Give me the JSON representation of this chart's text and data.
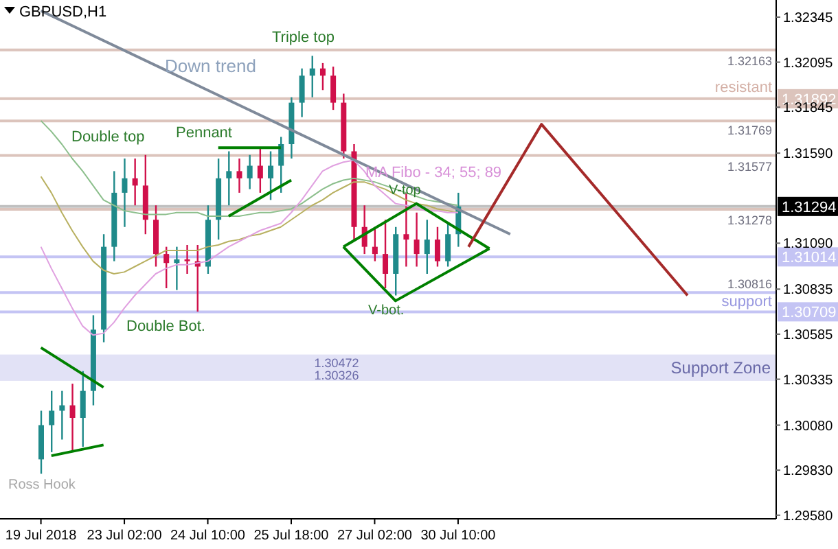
{
  "chart_data": {
    "type": "candlestick",
    "title": "GBPUSD,H1",
    "categories": [
      "19 Jul 2018",
      null,
      null,
      null,
      null,
      null,
      null,
      null,
      "23 Jul 02:00",
      null,
      null,
      null,
      null,
      null,
      null,
      null,
      "24 Jul 10:00",
      null,
      null,
      null,
      null,
      null,
      null,
      null,
      "25 Jul 18:00",
      null,
      null,
      null,
      null,
      null,
      null,
      null,
      "27 Jul 02:00",
      null,
      null,
      null,
      null,
      null,
      null,
      null,
      "30 Jul 10:00",
      null,
      null,
      null,
      null,
      null,
      null,
      null,
      null,
      null,
      null,
      null,
      null,
      null,
      null,
      null,
      null,
      null,
      null,
      null,
      null,
      null,
      null,
      null,
      null,
      null,
      null,
      null,
      null,
      null,
      null
    ],
    "ohlc": [
      [
        1.2989,
        1.3016,
        1.2981,
        1.3008
      ],
      [
        1.3008,
        1.3027,
        1.2993,
        1.3016
      ],
      [
        1.3016,
        1.3027,
        1.3,
        1.3019
      ],
      [
        1.3019,
        1.3031,
        1.2994,
        1.3012
      ],
      [
        1.3012,
        1.3038,
        1.2996,
        1.3027
      ],
      [
        1.3027,
        1.3069,
        1.3019,
        1.3061
      ],
      [
        1.3061,
        1.3114,
        1.3054,
        1.3107
      ],
      [
        1.3107,
        1.3149,
        1.3099,
        1.3137
      ],
      [
        1.3137,
        1.3156,
        1.3118,
        1.3145
      ],
      [
        1.3145,
        1.3156,
        1.313,
        1.3141
      ],
      [
        1.3141,
        1.3158,
        1.3114,
        1.3122
      ],
      [
        1.3122,
        1.313,
        1.3096,
        1.3103
      ],
      [
        1.3103,
        1.3107,
        1.3084,
        1.3098
      ],
      [
        1.3098,
        1.3107,
        1.3083,
        1.31
      ],
      [
        1.31,
        1.3108,
        1.3092,
        1.3099
      ],
      [
        1.3099,
        1.3108,
        1.3071,
        1.3096
      ],
      [
        1.3096,
        1.313,
        1.3092,
        1.3122
      ],
      [
        1.3122,
        1.3156,
        1.3111,
        1.3145
      ],
      [
        1.3145,
        1.316,
        1.313,
        1.3149
      ],
      [
        1.3149,
        1.3156,
        1.3137,
        1.3145
      ],
      [
        1.3145,
        1.3158,
        1.3139,
        1.3152
      ],
      [
        1.3152,
        1.3162,
        1.3137,
        1.3145
      ],
      [
        1.3145,
        1.316,
        1.3133,
        1.3152
      ],
      [
        1.3152,
        1.3168,
        1.3137,
        1.3164
      ],
      [
        1.3164,
        1.319,
        1.3156,
        1.3187
      ],
      [
        1.3187,
        1.3206,
        1.3179,
        1.3202
      ],
      [
        1.3202,
        1.3213,
        1.319,
        1.3206
      ],
      [
        1.3206,
        1.3209,
        1.3194,
        1.3202
      ],
      [
        1.3202,
        1.3207,
        1.3183,
        1.3187
      ],
      [
        1.3187,
        1.3192,
        1.3156,
        1.316
      ],
      [
        1.316,
        1.3164,
        1.3111,
        1.3118
      ],
      [
        1.3118,
        1.313,
        1.3103,
        1.3107
      ],
      [
        1.3107,
        1.3118,
        1.3099,
        1.3103
      ],
      [
        1.3103,
        1.3122,
        1.3084,
        1.3092
      ],
      [
        1.3092,
        1.3118,
        1.308,
        1.3114
      ],
      [
        1.3114,
        1.3137,
        1.3096,
        1.3111
      ],
      [
        1.3111,
        1.3126,
        1.3096,
        1.3103
      ],
      [
        1.3103,
        1.3122,
        1.3092,
        1.3111
      ],
      [
        1.3111,
        1.3118,
        1.3096,
        1.3099
      ],
      [
        1.3099,
        1.312,
        1.3096,
        1.3114
      ],
      [
        1.3114,
        1.3137,
        1.3107,
        1.31294
      ],
      null,
      null,
      null,
      null,
      null,
      null,
      null,
      null,
      null,
      null,
      null,
      null,
      null,
      null,
      null,
      null,
      null,
      null,
      null,
      null,
      null,
      null,
      null,
      null,
      null,
      null,
      null,
      null,
      null,
      null
    ],
    "colors": [
      "#1f8a8a",
      "#1f8a8a",
      "#1f8a8a",
      "#d0104a",
      "#1f8a8a",
      "#1f8a8a",
      "#1f8a8a",
      "#1f8a8a",
      "#1f8a8a",
      "#d0104a",
      "#d0104a",
      "#d0104a",
      "#d0104a",
      "#1f8a8a",
      "#d0104a",
      "#d0104a",
      "#1f8a8a",
      "#1f8a8a",
      "#1f8a8a",
      "#d0104a",
      "#1f8a8a",
      "#d0104a",
      "#1f8a8a",
      "#1f8a8a",
      "#1f8a8a",
      "#1f8a8a",
      "#1f8a8a",
      "#d0104a",
      "#d0104a",
      "#d0104a",
      "#d0104a",
      "#d0104a",
      "#d0104a",
      "#d0104a",
      "#1f8a8a",
      "#d0104a",
      "#d0104a",
      "#1f8a8a",
      "#d0104a",
      "#1f8a8a",
      "#1f8a8a",
      null,
      null,
      null,
      null,
      null,
      null,
      null,
      null,
      null,
      null,
      null,
      null,
      null,
      null,
      null,
      null,
      null,
      null,
      null,
      null,
      null,
      null,
      null,
      null,
      null,
      null,
      null,
      null,
      null,
      null
    ],
    "series": [
      {
        "type": "line",
        "color": "#8cbf8c",
        "values": [
          1.3177,
          1.3171,
          1.3164,
          1.3156,
          1.3149,
          1.3141,
          1.3133,
          1.313,
          1.3127,
          1.3126,
          1.3125,
          1.3125,
          1.3125,
          1.3126,
          1.3126,
          1.3126,
          1.3124,
          1.3124,
          1.3124,
          1.3124,
          1.3125,
          1.3126,
          1.3126,
          1.3127,
          1.3128,
          1.3131,
          1.3135,
          1.3139,
          1.3142,
          1.3144,
          1.3145,
          1.3144,
          1.3143,
          1.3141,
          1.3139,
          1.3137,
          1.3135,
          1.3133,
          1.3132,
          1.3131,
          1.313,
          null,
          null,
          null,
          null,
          null,
          null,
          null,
          null,
          null,
          null,
          null,
          null,
          null,
          null,
          null,
          null,
          null,
          null,
          null,
          null,
          null,
          null,
          null,
          null,
          null,
          null,
          null,
          null,
          null,
          null
        ]
      },
      {
        "type": "line",
        "color": "#b8b060",
        "values": [
          1.3146,
          1.3137,
          1.3126,
          1.3116,
          1.3107,
          1.3099,
          1.3094,
          1.3092,
          1.3093,
          1.3096,
          1.3099,
          1.3102,
          1.3105,
          1.3105,
          1.3105,
          1.3105,
          1.3107,
          1.3108,
          1.311,
          1.3111,
          1.3113,
          1.3114,
          1.3116,
          1.3118,
          1.3122,
          1.3126,
          1.313,
          1.3133,
          1.3137,
          1.314,
          1.3143,
          1.3143,
          1.3141,
          1.3139,
          1.3136,
          1.3133,
          1.3131,
          1.313,
          1.3128,
          1.3127,
          1.3126,
          null,
          null,
          null,
          null,
          null,
          null,
          null,
          null,
          null,
          null,
          null,
          null,
          null,
          null,
          null,
          null,
          null,
          null,
          null,
          null,
          null,
          null,
          null,
          null,
          null,
          null,
          null,
          null,
          null,
          null
        ]
      },
      {
        "type": "line",
        "color": "#e0a0e0",
        "values": [
          1.3107,
          1.3095,
          1.3084,
          1.3073,
          1.3063,
          1.3058,
          1.3059,
          1.3065,
          1.3073,
          1.308,
          1.3086,
          1.3092,
          1.3095,
          1.3097,
          1.3097,
          1.3098,
          1.3099,
          1.3103,
          1.3107,
          1.311,
          1.3113,
          1.3116,
          1.3118,
          1.312,
          1.3126,
          1.3133,
          1.3141,
          1.3149,
          1.3152,
          1.3154,
          1.3155,
          1.3149,
          1.3141,
          1.3136,
          1.3131,
          1.313,
          1.3128,
          1.3127,
          1.3127,
          1.3126,
          1.3126,
          null,
          null,
          null,
          null,
          null,
          null,
          null,
          null,
          null,
          null,
          null,
          null,
          null,
          null,
          null,
          null,
          null,
          null,
          null,
          null,
          null,
          null,
          null,
          null,
          null,
          null,
          null,
          null,
          null,
          null
        ]
      },
      {
        "type": "line",
        "color": "#7f8a9a",
        "values": [
          1.3238,
          null,
          null,
          null,
          null,
          null,
          null,
          null,
          null,
          null,
          null,
          null,
          null,
          null,
          null,
          null,
          null,
          null,
          null,
          null,
          null,
          null,
          null,
          null,
          null,
          null,
          null,
          null,
          null,
          null,
          null,
          null,
          null,
          null,
          null,
          null,
          null,
          null,
          null,
          null,
          null,
          null,
          null,
          null,
          null,
          1.3114,
          null,
          null,
          null,
          null,
          null,
          null,
          null,
          null,
          null,
          null,
          null,
          null,
          null,
          null,
          null,
          null,
          null,
          null,
          null,
          null,
          null,
          null,
          null,
          null,
          null
        ]
      },
      {
        "type": "line",
        "color": "#008000",
        "values": [
          1.3051,
          null,
          null,
          null,
          null,
          null,
          1.3029,
          null,
          null,
          null,
          null,
          null,
          null,
          null,
          null,
          null,
          null,
          null,
          null,
          null,
          null,
          null,
          null,
          null,
          null,
          null,
          null,
          null,
          null,
          null,
          null,
          null,
          null,
          null,
          null,
          null,
          null,
          null,
          null,
          null,
          null,
          null,
          null,
          null,
          null,
          null,
          null,
          null,
          null,
          null,
          null,
          null,
          null,
          null,
          null,
          null,
          null,
          null,
          null,
          null,
          null,
          null,
          null,
          null,
          null,
          null,
          null,
          null,
          null,
          null,
          null
        ]
      },
      {
        "type": "line",
        "color": "#008000",
        "values": [
          null,
          1.2991,
          null,
          null,
          null,
          null,
          1.2997,
          null,
          null,
          null,
          null,
          null,
          null,
          null,
          null,
          null,
          null,
          null,
          null,
          null,
          null,
          null,
          null,
          null,
          null,
          null,
          null,
          null,
          null,
          null,
          null,
          null,
          null,
          null,
          null,
          null,
          null,
          null,
          null,
          null,
          null,
          null,
          null,
          null,
          null,
          null,
          null,
          null,
          null,
          null,
          null,
          null,
          null,
          null,
          null,
          null,
          null,
          null,
          null,
          null,
          null,
          null,
          null,
          null,
          null,
          null,
          null,
          null,
          null,
          null,
          null
        ]
      },
      {
        "type": "line",
        "color": "#008000",
        "values": [
          null,
          null,
          null,
          null,
          null,
          null,
          null,
          null,
          null,
          null,
          null,
          null,
          null,
          null,
          null,
          null,
          null,
          1.3162,
          null,
          null,
          null,
          null,
          null,
          1.3162,
          null,
          null,
          null,
          null,
          null,
          null,
          null,
          null,
          null,
          null,
          null,
          null,
          null,
          null,
          null,
          null,
          null,
          null,
          null,
          null,
          null,
          null,
          null,
          null,
          null,
          null,
          null,
          null,
          null,
          null,
          null,
          null,
          null,
          null,
          null,
          null,
          null,
          null,
          null,
          null,
          null,
          null,
          null,
          null,
          null,
          null,
          null
        ]
      },
      {
        "type": "line",
        "color": "#008000",
        "values": [
          null,
          null,
          null,
          null,
          null,
          null,
          null,
          null,
          null,
          null,
          null,
          null,
          null,
          null,
          null,
          null,
          null,
          null,
          1.3124,
          null,
          null,
          null,
          null,
          null,
          1.3144,
          null,
          null,
          null,
          null,
          null,
          null,
          null,
          null,
          null,
          null,
          null,
          null,
          null,
          null,
          null,
          null,
          null,
          null,
          null,
          null,
          null,
          null,
          null,
          null,
          null,
          null,
          null,
          null,
          null,
          null,
          null,
          null,
          null,
          null,
          null,
          null,
          null,
          null,
          null,
          null,
          null,
          null,
          null,
          null,
          null,
          null
        ]
      },
      {
        "type": "line",
        "color": "#008000",
        "values": [
          null,
          null,
          null,
          null,
          null,
          null,
          null,
          null,
          null,
          null,
          null,
          null,
          null,
          null,
          null,
          null,
          null,
          null,
          null,
          null,
          null,
          null,
          null,
          null,
          null,
          null,
          null,
          null,
          null,
          1.3107,
          null,
          null,
          null,
          null,
          null,
          null,
          1.3131,
          null,
          null,
          null,
          null,
          null,
          null,
          1.3106,
          null,
          null,
          null,
          null,
          null,
          null,
          null,
          null,
          null,
          null,
          null,
          null,
          null,
          null,
          null,
          null,
          null,
          null,
          null,
          null,
          null,
          null,
          null,
          null,
          null,
          null,
          null
        ]
      },
      {
        "type": "line",
        "color": "#008000",
        "values": [
          null,
          null,
          null,
          null,
          null,
          null,
          null,
          null,
          null,
          null,
          null,
          null,
          null,
          null,
          null,
          null,
          null,
          null,
          null,
          null,
          null,
          null,
          null,
          null,
          null,
          null,
          null,
          null,
          null,
          1.3107,
          null,
          null,
          null,
          null,
          1.3077,
          null,
          null,
          null,
          null,
          null,
          null,
          null,
          null,
          1.3106,
          null,
          null,
          null,
          null,
          null,
          null,
          null,
          null,
          null,
          null,
          null,
          null,
          null,
          null,
          null,
          null,
          null,
          null,
          null,
          null,
          null,
          null,
          null,
          null,
          null,
          null,
          null
        ]
      },
      {
        "type": "line",
        "color": "#a52a2a",
        "values": [
          null,
          null,
          null,
          null,
          null,
          null,
          null,
          null,
          null,
          null,
          null,
          null,
          null,
          null,
          null,
          null,
          null,
          null,
          null,
          null,
          null,
          null,
          null,
          null,
          null,
          null,
          null,
          null,
          null,
          null,
          null,
          null,
          null,
          null,
          null,
          null,
          null,
          null,
          null,
          null,
          null,
          1.3107,
          null,
          null,
          null,
          null,
          null,
          null,
          1.3175,
          null,
          null,
          null,
          null,
          null,
          null,
          null,
          null,
          null,
          null,
          null,
          null,
          null,
          1.308,
          null,
          null,
          null,
          null,
          null,
          null,
          null,
          null
        ]
      }
    ],
    "ylim": [
      1.2956,
      1.3244
    ],
    "yticks": [
      1.32345,
      1.32095,
      1.31845,
      {
        "value": 1.3159,
        "label": "1.31590"
      },
      {
        "value": 1.3109,
        "label": "1.31090"
      },
      1.30835,
      1.30585,
      1.30335,
      {
        "value": 1.3008,
        "label": "1.30080"
      },
      {
        "value": 1.2983,
        "label": "1.29830"
      },
      {
        "value": 1.2958,
        "label": "1.29580"
      }
    ],
    "ref_lines": [
      {
        "axis": "y",
        "value": 1.32163,
        "color": "#dcc4bc"
      },
      {
        "axis": "y",
        "value": 1.31892,
        "label": "1.31892",
        "color": "#dcc4bc"
      },
      {
        "axis": "y",
        "value": 1.31769,
        "color": "#dcc4bc"
      },
      {
        "axis": "y",
        "value": 1.31577,
        "color": "#dcc4bc"
      },
      {
        "axis": "y",
        "value": 1.31278,
        "color": "#dcc4bc"
      },
      {
        "axis": "y",
        "value": 1.31294,
        "label": "1.31294",
        "color": "#c0c0c0"
      },
      {
        "axis": "y",
        "value": 1.31014,
        "label": "1.31014",
        "color": "#c4c4f4"
      },
      {
        "axis": "y",
        "value": 1.30816,
        "color": "#c4c4f4"
      },
      {
        "axis": "y",
        "value": 1.30709,
        "label": "1.30709",
        "color": "#c4c4f4"
      }
    ],
    "bands": [
      {
        "axis": "y",
        "from": 1.30326,
        "to": 1.30472,
        "label": "Support Zone",
        "color": "#e2e2f6"
      }
    ],
    "annotations": [
      {
        "text": "Down trend",
        "y": 1.3195
      },
      {
        "text": "Triple top",
        "y": 1.3213
      },
      {
        "text": "Double top",
        "y": 1.3158
      },
      "Pennant",
      {
        "text": "Double Bot.",
        "y": 1.3071
      },
      "Ross Hook",
      {
        "text": "V-top",
        "y": 1.3131
      },
      "V-bot.",
      "MA Fibo - 34; 55; 89",
      {
        "text": "1.32163",
        "y": 1.32163
      },
      {
        "text": "resistant",
        "y": 1.31892
      },
      {
        "text": "1.31769",
        "y": 1.31769
      },
      {
        "text": "1.31577",
        "y": 1.31577
      },
      {
        "text": "1.31278",
        "y": 1.31278
      },
      {
        "text": "1.30816",
        "y": 1.30816
      },
      {
        "text": "support",
        "y": 1.30709
      },
      {
        "text": "1.30472",
        "y": 1.30472
      },
      {
        "text": "1.30326",
        "y": 1.30326
      }
    ]
  }
}
